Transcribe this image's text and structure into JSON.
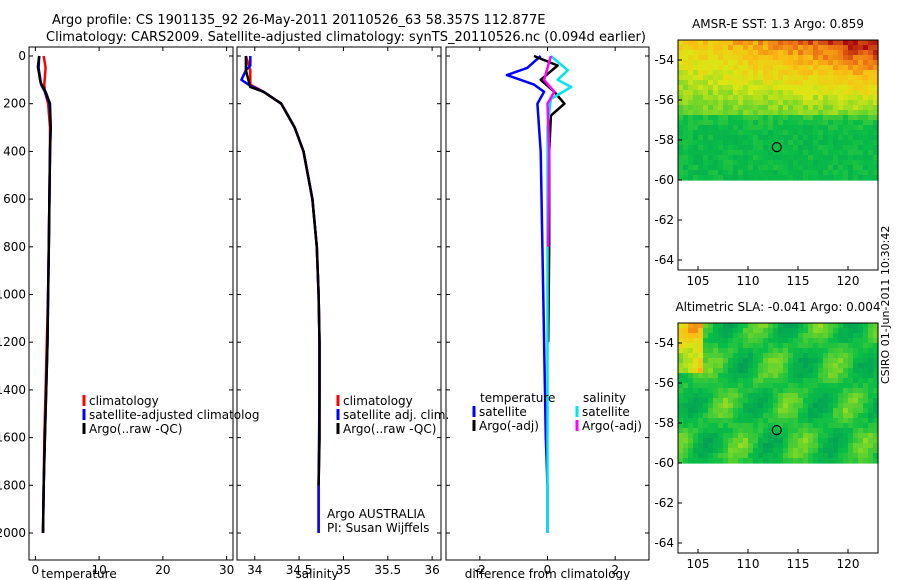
{
  "header": {
    "line1": "Argo profile: CS 1901135_92 26-May-2011 20110526_63 58.357S 112.877E",
    "line2": "Climatology: CARS2009. Satellite-adjusted climatology: synTS_20110526.nc (0.094d earlier)"
  },
  "stamp": "CSIRO 01-Jun-2011 10:30:42",
  "colors": {
    "climatology": "#ff0000",
    "satellite": "#0000ff",
    "argo": "#000000",
    "satellite_sal": "#00e5ee",
    "argo_sal": "#ff00ff"
  },
  "chart_data": [
    {
      "type": "line",
      "name": "temperature-panel",
      "xlabel": "temperature",
      "xlim": [
        -1,
        31
      ],
      "ylim": [
        0,
        2050
      ],
      "y_inverted": true,
      "xticks": [
        0,
        10,
        20,
        30
      ],
      "yticks": [
        0,
        200,
        400,
        600,
        800,
        1000,
        1200,
        1400,
        1600,
        1800,
        2000
      ],
      "legend": [
        "climatology",
        "satellite-adjusted climatolog",
        "Argo(..raw -QC)"
      ],
      "series": [
        {
          "name": "climatology",
          "color": "#ff0000",
          "x": [
            1.3,
            1.6,
            1.4,
            1.5,
            2.0,
            2.3,
            2.3,
            2.2,
            2.1,
            2.0,
            1.8,
            1.6,
            1.4,
            1.3,
            1.2
          ],
          "y": [
            0,
            50,
            120,
            150,
            200,
            300,
            400,
            600,
            800,
            1000,
            1200,
            1400,
            1600,
            1800,
            2000
          ]
        },
        {
          "name": "satellite",
          "color": "#0000ff",
          "x": [
            0.6,
            0.5,
            0.9,
            1.5,
            2.2,
            2.4,
            2.3,
            2.2,
            2.1,
            2.0,
            1.9,
            1.7,
            1.5,
            1.3,
            1.2
          ],
          "y": [
            0,
            50,
            120,
            150,
            200,
            300,
            400,
            600,
            800,
            1000,
            1200,
            1400,
            1600,
            1800,
            2000
          ]
        },
        {
          "name": "argo",
          "color": "#000000",
          "x": [
            0.6,
            0.4,
            0.8,
            1.6,
            2.3,
            2.4,
            2.3,
            2.2,
            2.1,
            2.0,
            1.9,
            1.7,
            1.5,
            1.3,
            1.2
          ],
          "y": [
            0,
            45,
            110,
            150,
            200,
            300,
            400,
            600,
            800,
            1000,
            1200,
            1400,
            1600,
            1800,
            2000
          ]
        }
      ]
    },
    {
      "type": "line",
      "name": "salinity-panel",
      "xlabel": "salinity",
      "xlim": [
        33.8,
        36.1
      ],
      "ylim": [
        0,
        2050
      ],
      "y_inverted": true,
      "xticks": [
        34,
        34.5,
        35,
        35.5,
        36
      ],
      "legend": [
        "climatology",
        "satellite adj. clim.",
        "Argo(..raw -QC)"
      ],
      "annotation": [
        "Argo AUSTRALIA",
        "PI: Susan Wijffels"
      ],
      "series": [
        {
          "name": "climatology",
          "color": "#ff0000",
          "x": [
            33.9,
            33.95,
            33.95,
            34.1,
            34.3,
            34.45,
            34.55,
            34.65,
            34.7,
            34.72,
            34.73,
            34.73,
            34.73,
            34.72,
            34.72
          ],
          "y": [
            0,
            60,
            120,
            150,
            200,
            300,
            400,
            600,
            800,
            1000,
            1200,
            1400,
            1600,
            1800,
            2000
          ]
        },
        {
          "name": "satellite",
          "color": "#0000ff",
          "x": [
            33.95,
            33.95,
            33.9,
            33.85,
            33.95,
            34.1,
            34.3,
            34.45,
            34.55,
            34.65,
            34.7,
            34.72,
            34.73,
            34.73,
            34.72,
            34.72
          ],
          "y": [
            0,
            40,
            60,
            100,
            125,
            150,
            200,
            300,
            400,
            600,
            800,
            1000,
            1200,
            1400,
            1800,
            2000
          ]
        },
        {
          "name": "argo",
          "color": "#000000",
          "x": [
            33.9,
            33.9,
            33.95,
            34.1,
            34.3,
            34.45,
            34.55,
            34.65,
            34.7,
            34.72,
            34.73,
            34.73,
            34.73,
            34.72
          ],
          "y": [
            0,
            60,
            130,
            150,
            200,
            300,
            400,
            600,
            800,
            1000,
            1200,
            1400,
            1600,
            1800
          ]
        }
      ]
    },
    {
      "type": "line",
      "name": "difference-panel",
      "xlabel": "difference from climatology",
      "xlim": [
        -3,
        3
      ],
      "ylim": [
        0,
        2050
      ],
      "y_inverted": true,
      "xticks": [
        -2,
        0,
        2
      ],
      "legend_temperature_title": "temperature",
      "legend_salinity_title": "salinity",
      "legend": [
        "satellite",
        "Argo(-adj)",
        "satellite",
        "Argo(-adj)"
      ],
      "series": [
        {
          "name": "temperature satellite",
          "color": "#0000ff",
          "x": [
            -0.2,
            -0.6,
            -1.2,
            -0.4,
            -0.1,
            -0.3,
            -0.2,
            -0.15,
            -0.1,
            -0.05,
            0.0,
            0.0
          ],
          "y": [
            0,
            50,
            80,
            120,
            150,
            200,
            400,
            800,
            1200,
            1600,
            1800,
            2000
          ]
        },
        {
          "name": "temperature argo",
          "color": "#000000",
          "x": [
            -0.4,
            0.3,
            -0.2,
            0.2,
            0.5,
            0.1,
            0.05,
            0.05,
            0.02
          ],
          "y": [
            0,
            40,
            100,
            150,
            200,
            250,
            400,
            800,
            1200
          ]
        },
        {
          "name": "salinity satellite",
          "color": "#00e5ee",
          "x": [
            0.1,
            0.6,
            0.3,
            0.7,
            0.1,
            0.0,
            0.0,
            0.0
          ],
          "y": [
            0,
            60,
            100,
            130,
            180,
            300,
            1000,
            2000
          ]
        },
        {
          "name": "salinity argo",
          "color": "#ff00ff",
          "x": [
            0.1,
            -0.1,
            0.2,
            0.0,
            0.05,
            0.02
          ],
          "y": [
            0,
            100,
            150,
            200,
            400,
            800
          ]
        }
      ]
    },
    {
      "type": "heatmap",
      "name": "sst-map",
      "title": "AMSR-E SST: 1.3 Argo: 0.859",
      "xlim": [
        103,
        123
      ],
      "ylim": [
        -64.5,
        -53
      ],
      "xticks": [
        105,
        110,
        115,
        120
      ],
      "yticks": [
        -54,
        -56,
        -58,
        -60,
        -62,
        -64
      ],
      "data_extent_lat_min": -60,
      "marker": {
        "lon": 112.877,
        "lat": -58.357
      }
    },
    {
      "type": "heatmap",
      "name": "sla-map",
      "title": "Altimetric SLA: -0.041 Argo: 0.004",
      "xlim": [
        103,
        123
      ],
      "ylim": [
        -64.5,
        -53
      ],
      "xticks": [
        105,
        110,
        115,
        120
      ],
      "yticks": [
        -54,
        -56,
        -58,
        -60,
        -62,
        -64
      ],
      "data_extent_lat_min": -60,
      "marker": {
        "lon": 112.877,
        "lat": -58.357
      }
    }
  ]
}
